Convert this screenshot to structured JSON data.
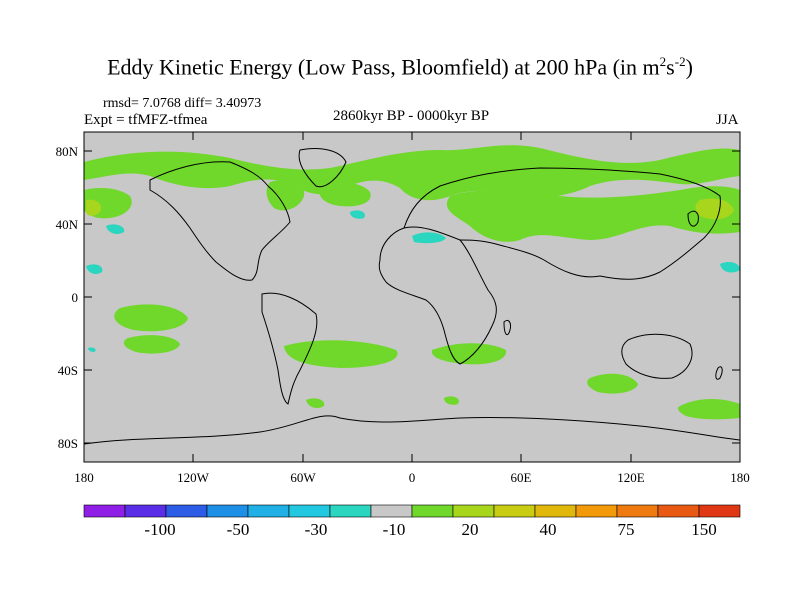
{
  "title": {
    "main": "Eddy Kinetic Energy (Low Pass, Bloomfield) at 200 hPa (in m",
    "sup1": "2",
    "mid": "s",
    "sup2": "-2",
    "end": ")"
  },
  "stats": "rmsd= 7.0768 diff= 3.40973",
  "expt": "Expt = tfMFZ-tfmea",
  "period": "2860kyr BP - 0000kyr BP",
  "season": "JJA",
  "lat_labels": [
    "80N",
    "40N",
    "0",
    "40S",
    "80S"
  ],
  "lon_labels": [
    "180",
    "120W",
    "60W",
    "0",
    "60E",
    "120E",
    "180"
  ],
  "colorbar": {
    "colors": [
      "#8f1fe6",
      "#5a2ee6",
      "#2d5ce6",
      "#1e8fe6",
      "#20b0e6",
      "#22c8e0",
      "#2ad6c0",
      "#c8c8c8",
      "#6fd82a",
      "#a8d61c",
      "#c8cc12",
      "#e0b80c",
      "#f29a0a",
      "#ee7a10",
      "#e85a14",
      "#e03814"
    ],
    "labels": [
      "-100",
      "-50",
      "-30",
      "-10",
      "20",
      "40",
      "75",
      "150"
    ]
  },
  "map_colors": {
    "ocean": "#c8c8c8",
    "green": "#6fd82a",
    "yellow_green": "#a8d61c",
    "cyan": "#2ad6c0",
    "coast": "#000000"
  }
}
